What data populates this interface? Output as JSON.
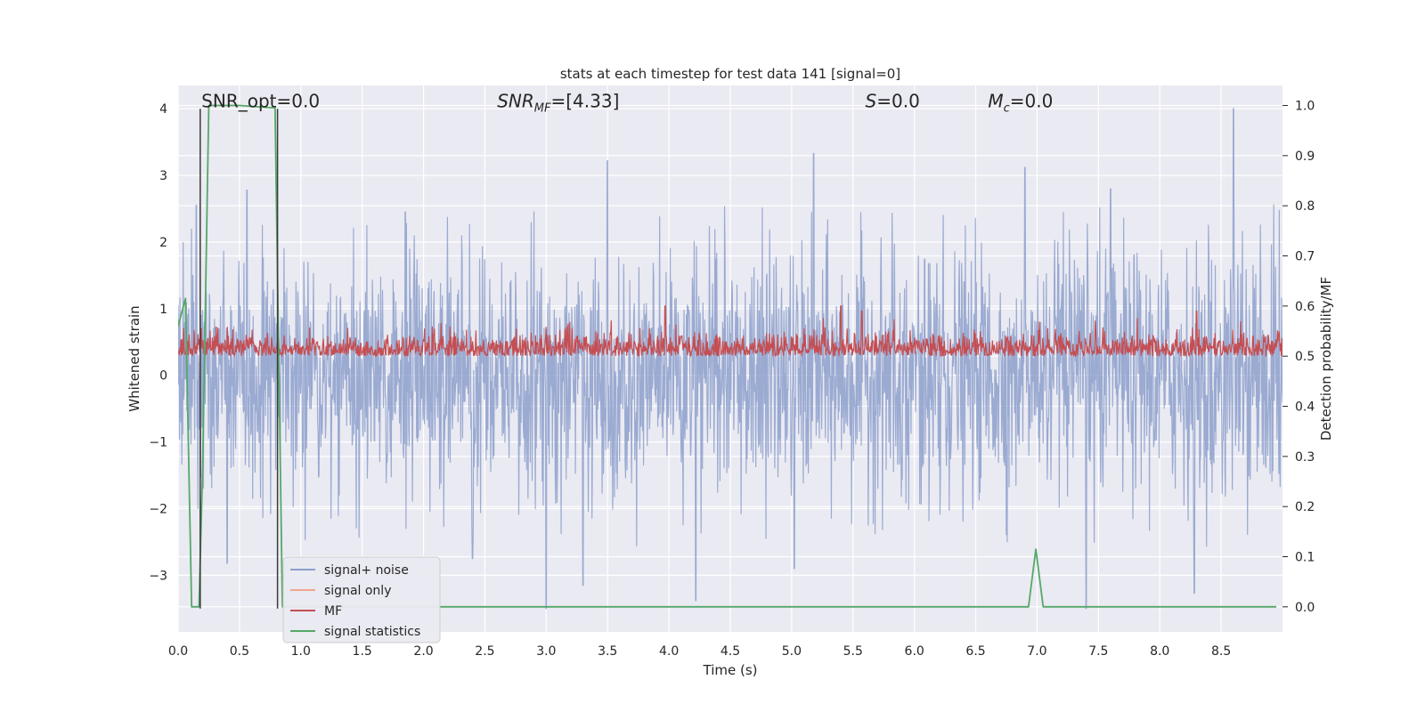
{
  "chart_data": {
    "type": "line",
    "title": "stats at each timestep for test data 141 [signal=0]",
    "xlabel": "Time (s)",
    "ylabel": "Whitened strain",
    "y2label": "Detection probability/MF",
    "xlim": [
      0,
      9
    ],
    "ylim": [
      -3.85,
      4.35
    ],
    "y2lim": [
      -0.05,
      1.04
    ],
    "x_ticks": [
      0.0,
      0.5,
      1.0,
      1.5,
      2.0,
      2.5,
      3.0,
      3.5,
      4.0,
      4.5,
      5.0,
      5.5,
      6.0,
      6.5,
      7.0,
      7.5,
      8.0,
      8.5
    ],
    "x_tick_labels": [
      "0.0",
      "0.5",
      "1.0",
      "1.5",
      "2.0",
      "2.5",
      "3.0",
      "3.5",
      "4.0",
      "4.5",
      "5.0",
      "5.5",
      "6.0",
      "6.5",
      "7.0",
      "7.5",
      "8.0",
      "8.5"
    ],
    "y_ticks": [
      -3,
      -2,
      -1,
      0,
      1,
      2,
      3,
      4
    ],
    "y_tick_labels": [
      "−3",
      "−2",
      "−1",
      "0",
      "1",
      "2",
      "3",
      "4"
    ],
    "y2_ticks": [
      0.0,
      0.1,
      0.2,
      0.3,
      0.4,
      0.5,
      0.6,
      0.7,
      0.8,
      0.9,
      1.0
    ],
    "y2_tick_labels": [
      "0.0",
      "0.1",
      "0.2",
      "0.3",
      "0.4",
      "0.5",
      "0.6",
      "0.7",
      "0.8",
      "0.9",
      "1.0"
    ],
    "grid": true,
    "legend_position": "lower-left",
    "annotations": [
      {
        "label": "SNR_opt=0.0",
        "x": 0.19,
        "y": 4.1
      },
      {
        "label": "SNR_MF=[4.33]",
        "x": 2.6,
        "y": 4.1
      },
      {
        "label": "S=0.0",
        "x": 5.6,
        "y": 4.1
      },
      {
        "label": "M_c=0.0",
        "x": 6.6,
        "y": 4.1
      }
    ],
    "vlines": [
      {
        "x": 0.18,
        "y": [
          -3.5,
          4.0
        ]
      },
      {
        "x": 0.81,
        "y": [
          -3.5,
          4.0
        ]
      }
    ],
    "series": [
      {
        "name": "signal+ noise",
        "color": "#8c9fcb",
        "axis": "left",
        "kind": "noise",
        "sigma": 0.9,
        "duration": 9.0,
        "peaks": [
          [
            0.15,
            2.55
          ],
          [
            0.56,
            2.78
          ],
          [
            1.85,
            2.45
          ],
          [
            3.5,
            3.22
          ],
          [
            5.18,
            3.33
          ],
          [
            6.9,
            3.12
          ],
          [
            7.6,
            2.8
          ],
          [
            8.6,
            4.0
          ]
        ],
        "troughs": [
          [
            0.4,
            -2.82
          ],
          [
            2.4,
            -2.75
          ],
          [
            3.0,
            -3.5
          ],
          [
            3.3,
            -3.15
          ],
          [
            4.22,
            -3.38
          ],
          [
            5.02,
            -2.9
          ],
          [
            7.4,
            -3.5
          ],
          [
            8.28,
            -3.27
          ]
        ]
      },
      {
        "name": "signal only",
        "color": "#f0a58c",
        "axis": "left",
        "kind": "flat",
        "values": []
      },
      {
        "name": "MF",
        "color": "#c44e52",
        "axis": "right",
        "kind": "mf",
        "base": 0.505,
        "duration": 9.0,
        "peaks": [
          [
            3.97,
            0.6
          ],
          [
            5.4,
            0.6
          ],
          [
            5.57,
            0.59
          ],
          [
            8.3,
            0.59
          ]
        ]
      },
      {
        "name": "signal statistics",
        "color": "#55a868",
        "axis": "right",
        "kind": "line",
        "x": [
          0.0,
          0.06,
          0.11,
          0.17,
          0.2,
          0.25,
          0.3,
          0.5,
          0.79,
          0.85,
          0.9,
          6.93,
          6.99,
          7.05,
          8.95
        ],
        "y": [
          0.56,
          0.615,
          0.0,
          0.0,
          0.28,
          1.0,
          1.0,
          1.0,
          0.995,
          0.0,
          0.0,
          0.0,
          0.115,
          0.0,
          0.0
        ]
      }
    ]
  }
}
